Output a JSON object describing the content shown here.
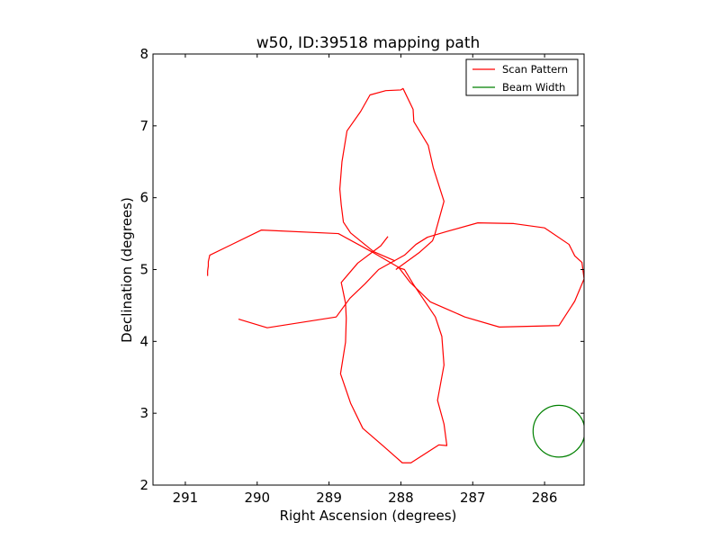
{
  "chart_data": {
    "type": "line",
    "title": "w50, ID:39518 mapping path",
    "xlabel": "Right Ascension (degrees)",
    "ylabel": "Declination (degrees)",
    "xlim": [
      291.45,
      285.45
    ],
    "ylim": [
      2,
      8
    ],
    "x_inverted": true,
    "grid": false,
    "legend_placement": "upper-right",
    "x_ticks": [
      291,
      290,
      289,
      288,
      287,
      286
    ],
    "x_tick_labels": [
      "291",
      "290",
      "289",
      "288",
      "287",
      "286"
    ],
    "y_ticks": [
      2,
      3,
      4,
      5,
      6,
      7,
      8
    ],
    "y_tick_labels": [
      "2",
      "3",
      "4",
      "5",
      "6",
      "7",
      "8"
    ],
    "series": [
      {
        "name": "Scan Pattern",
        "color": "#ff0000",
        "x": [
          290.69,
          290.69,
          290.68,
          290.68,
          290.66,
          289.94,
          288.87,
          288.41,
          288.03,
          287.87,
          287.59,
          287.36,
          287.11,
          286.63,
          285.8,
          285.58,
          285.45,
          285.48,
          285.58,
          285.66,
          286.0,
          286.43,
          286.93,
          287.36,
          287.63,
          287.79,
          287.95,
          288.31,
          288.5,
          288.71,
          288.9,
          289.86,
          290.26
        ],
        "y": [
          4.91,
          4.98,
          5.05,
          5.11,
          5.2,
          5.55,
          5.5,
          5.25,
          5.03,
          4.82,
          4.55,
          4.45,
          4.34,
          4.2,
          4.22,
          4.56,
          4.87,
          5.1,
          5.19,
          5.35,
          5.58,
          5.64,
          5.65,
          5.53,
          5.45,
          5.35,
          5.2,
          5.0,
          4.8,
          4.6,
          4.34,
          4.19,
          4.31
        ]
      },
      {
        "name": "Scan Pattern",
        "color": "#ff0000",
        "x": [
          288.05,
          287.95,
          287.83,
          287.52,
          287.43,
          287.4,
          287.49,
          287.4,
          287.36,
          287.47,
          287.86,
          287.98,
          288.24,
          288.53,
          288.7,
          288.84,
          288.77,
          288.76,
          288.77,
          288.83,
          288.6,
          288.28,
          288.18
        ],
        "y": [
          5.03,
          5.0,
          4.8,
          4.34,
          4.07,
          3.67,
          3.18,
          2.85,
          2.55,
          2.56,
          2.31,
          2.31,
          2.54,
          2.79,
          3.14,
          3.55,
          3.99,
          4.32,
          4.53,
          4.82,
          5.09,
          5.33,
          5.46
        ]
      },
      {
        "name": "Scan Pattern",
        "color": "#ff0000",
        "x": [
          288.07,
          287.74,
          287.56,
          287.53,
          287.4,
          287.55,
          287.62,
          287.82,
          287.83,
          287.97,
          288.0,
          288.21,
          288.43,
          288.56,
          288.75,
          288.82,
          288.85,
          288.83,
          288.8,
          288.7,
          288.54,
          288.38,
          288.08
        ],
        "y": [
          5.0,
          5.24,
          5.4,
          5.48,
          5.95,
          6.42,
          6.73,
          7.06,
          7.23,
          7.52,
          7.5,
          7.49,
          7.43,
          7.2,
          6.93,
          6.5,
          6.12,
          5.9,
          5.66,
          5.51,
          5.38,
          5.25,
          5.12
        ]
      },
      {
        "name": "Beam Width",
        "color": "#008000",
        "center": [
          285.8,
          2.75
        ],
        "radius": 0.36
      }
    ]
  }
}
